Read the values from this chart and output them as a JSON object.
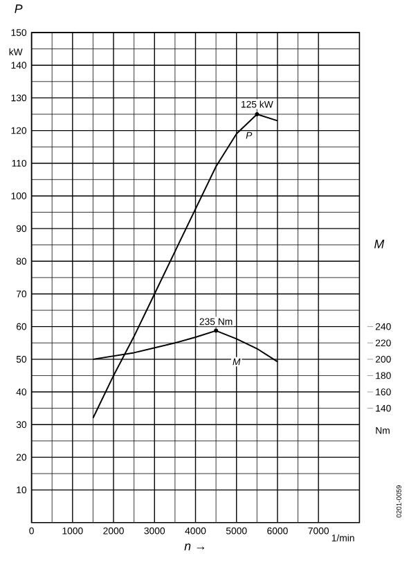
{
  "chart_data": {
    "type": "line",
    "xlabel": "n →",
    "ylabel": "P",
    "y2label": "M",
    "x": [
      1500,
      2000,
      2500,
      3000,
      3500,
      4000,
      4500,
      5000,
      5500,
      6000
    ],
    "series": [
      {
        "name": "P",
        "color": "#000000",
        "values": [
          32,
          45,
          57,
          70,
          83,
          96,
          109,
          119,
          125,
          123
        ]
      },
      {
        "name": "M",
        "color": "#000000",
        "axis": "y2",
        "x": [
          1500,
          2500,
          3500,
          4000,
          4500,
          5000,
          5500,
          6000
        ],
        "values": [
          200,
          208,
          220,
          227,
          235,
          225,
          213,
          197
        ]
      }
    ],
    "xlim": [
      0,
      8000
    ],
    "ylim": [
      0,
      150
    ],
    "y2lim": [
      0,
      600
    ],
    "xticks": [
      0,
      1000,
      2000,
      3000,
      4000,
      5000,
      6000,
      7000
    ],
    "yticks": [
      10,
      20,
      30,
      40,
      50,
      60,
      70,
      80,
      90,
      100,
      110,
      120,
      130,
      140,
      150
    ],
    "y2ticks": [
      140,
      160,
      180,
      200,
      220,
      240
    ],
    "annotations": [
      {
        "text": "125 kW",
        "x": 5500,
        "y": 125
      },
      "235 Nm",
      "0201-0059",
      "1/min",
      "kW",
      "Nm"
    ],
    "grid": true,
    "line_style": "solid"
  }
}
